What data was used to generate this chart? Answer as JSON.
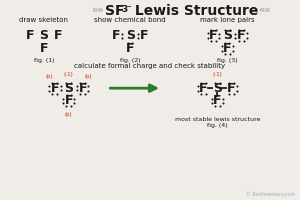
{
  "bg_color": "#f0ede8",
  "text_color": "#1a1a1a",
  "red_color": "#cc2200",
  "green_color": "#2d7a2d",
  "step1_title": "draw skeleton",
  "step2_title": "show chemical bond",
  "step3_title": "mark lone pairs",
  "step4_title": "calculate formal charge and check stability",
  "footer": "most stable lewis structure",
  "fig1_label": "fig. (1)",
  "fig2_label": "fig. (2)",
  "fig3_label": "fig. (3)",
  "fig4_label": "fig. (4)",
  "watermark": "© Rootmemory.com",
  "title_chevron_l": "»»",
  "title_chevron_r": "««",
  "title_SF": "SF",
  "title_sub": "3",
  "title_sup": "⁻",
  "title_rest": " Lewis Structure"
}
